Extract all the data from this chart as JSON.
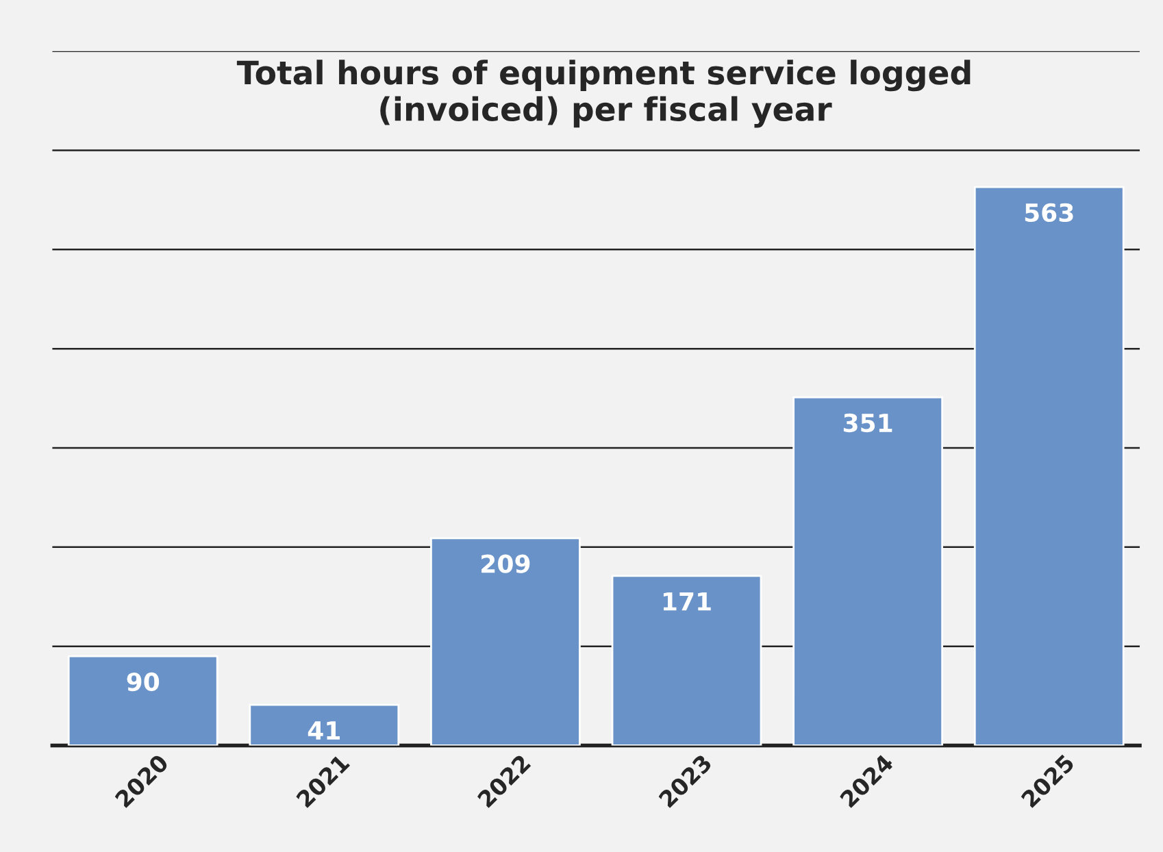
{
  "chart_data": {
    "type": "bar",
    "title": "Total hours of equipment service logged\n(invoiced) per fiscal year",
    "categories": [
      "2020",
      "2021",
      "2022",
      "2023",
      "2024",
      "2025"
    ],
    "values": [
      90,
      41,
      209,
      171,
      351,
      563
    ],
    "color": "#6892c8",
    "ylim": [
      0,
      700
    ],
    "yticks": [
      {
        "value": 0,
        "label": null
      },
      {
        "value": 100,
        "label": null
      },
      {
        "value": 200,
        "label": null
      },
      {
        "value": 300,
        "label": null
      },
      {
        "value": 400,
        "label": null
      },
      {
        "value": 500,
        "label": null
      },
      {
        "value": 600,
        "label": null
      },
      {
        "value": 700,
        "label": null
      }
    ],
    "grid": "y",
    "data_labels": true,
    "tick_labels": "x",
    "legend": false
  }
}
